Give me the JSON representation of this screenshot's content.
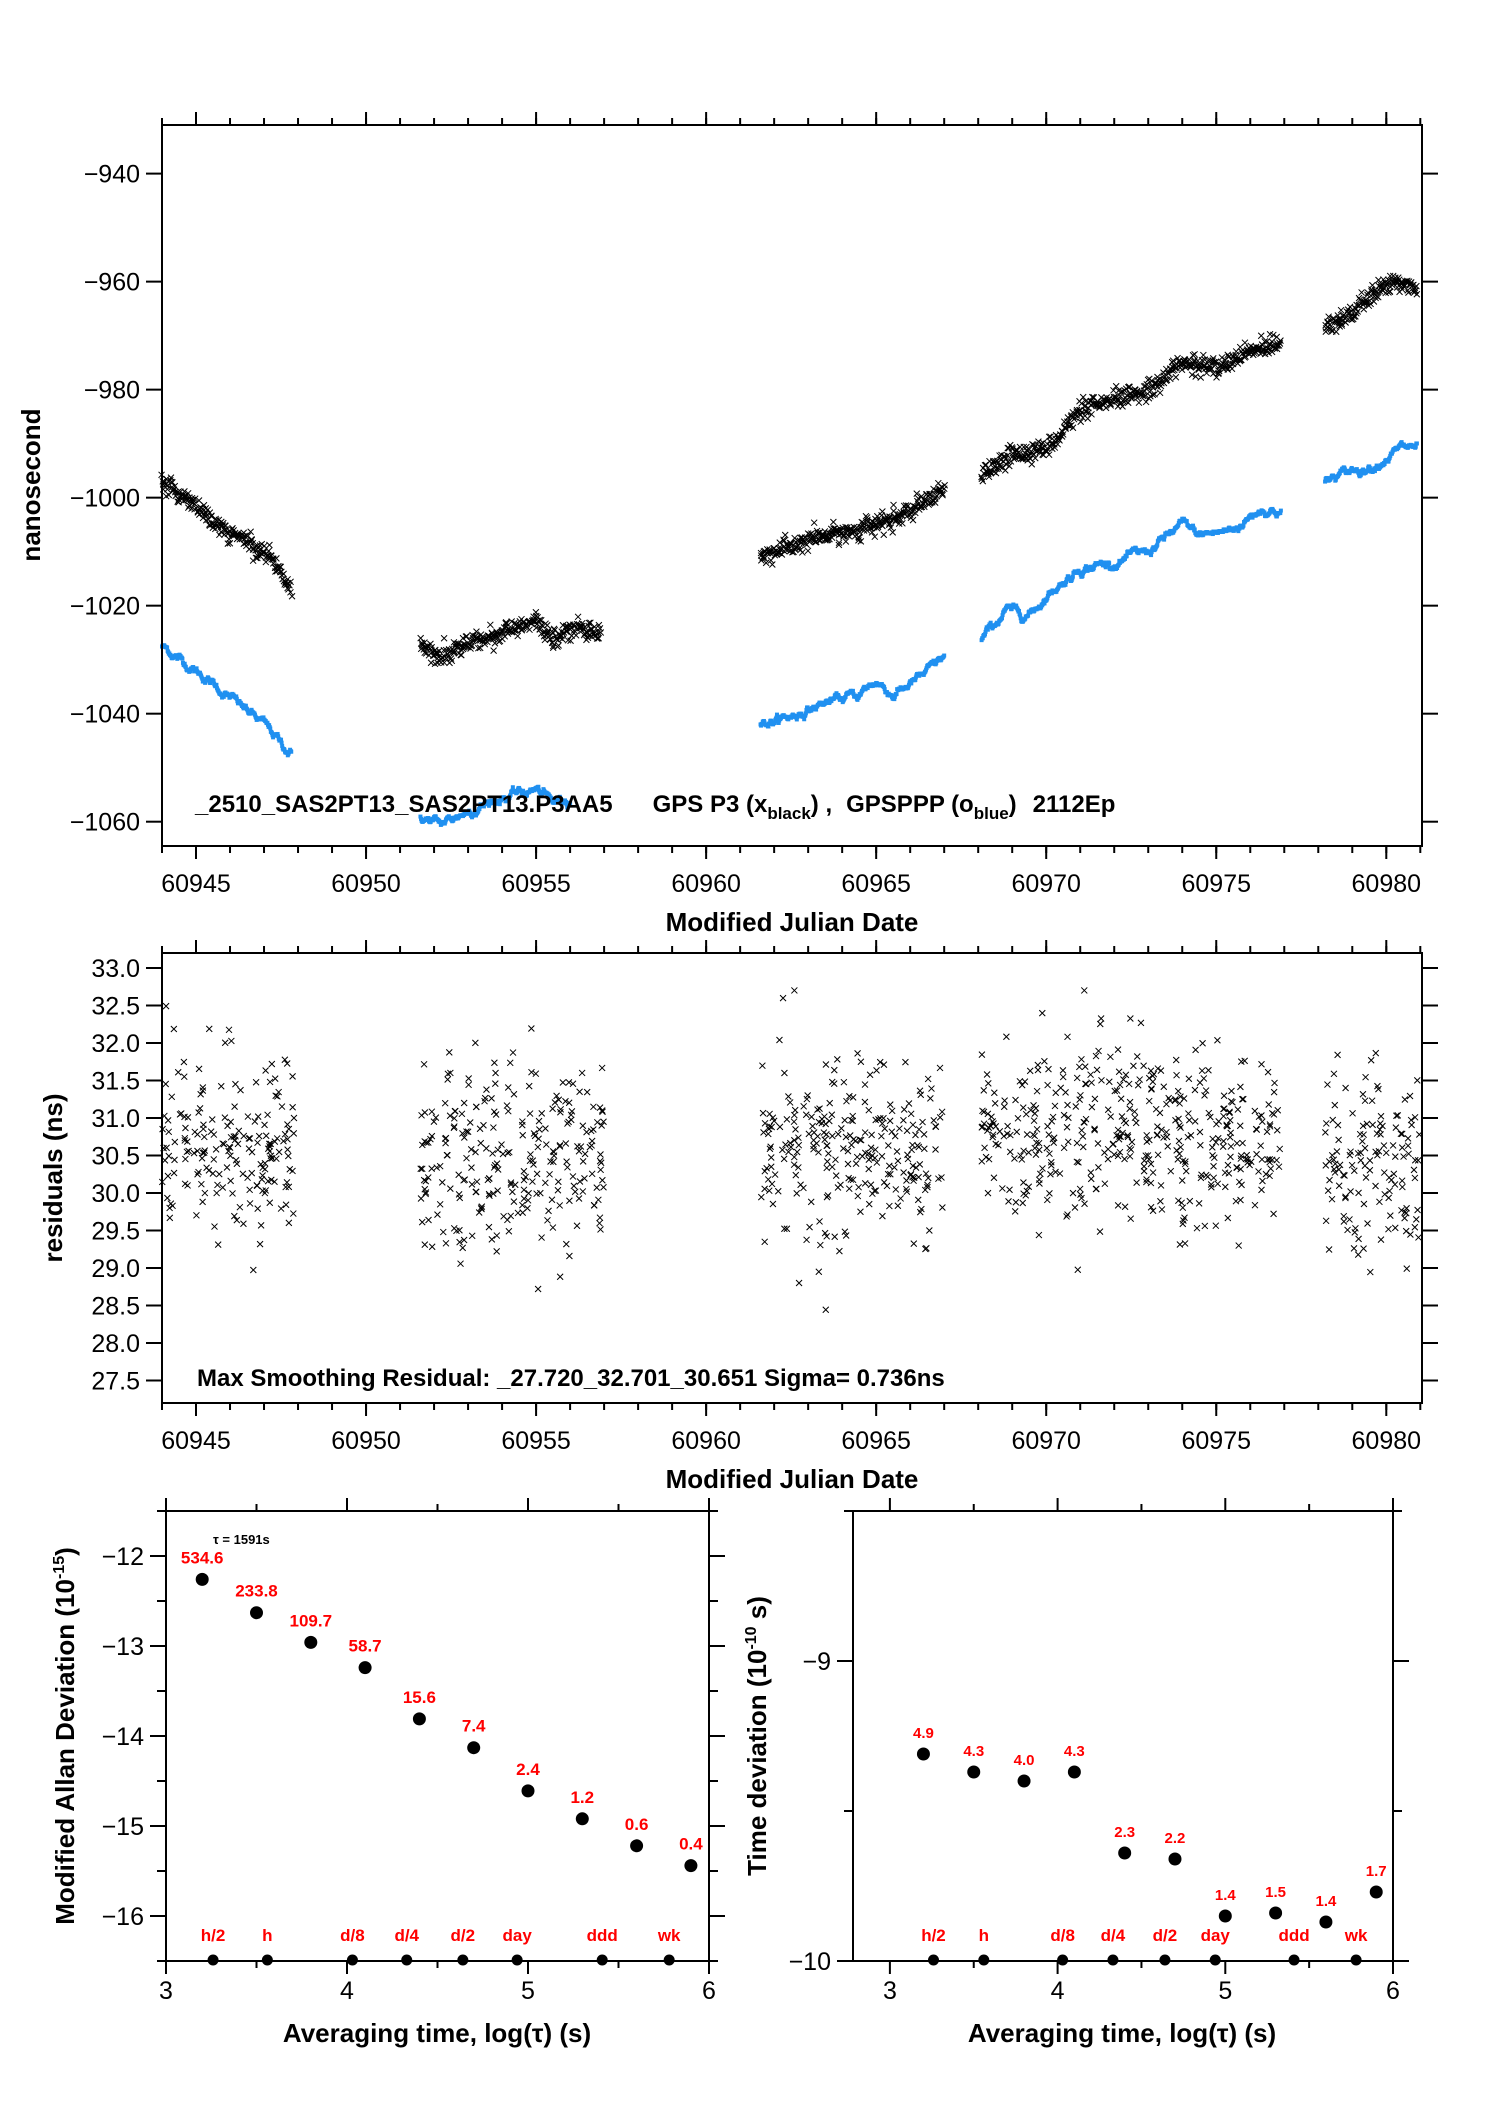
{
  "colors": {
    "black_series": "#000000",
    "blue_series": "#2090f0",
    "label_red": "#ff0000"
  },
  "chart_data": [
    {
      "id": "time_series",
      "type": "scatter",
      "title": "",
      "annotation": {
        "prefix": "_2510_SAS2PT13_SAS2PT13.P3AA5",
        "gps_p3": "GPS P3 (x",
        "gps_p3_sub": "black",
        "comma": ") ,",
        "gpsppp": "GPSPPP (o",
        "gpsppp_sub": "blue",
        "close": ")",
        "suffix": "2112Ep"
      },
      "xlabel": "Modified Julian Date",
      "ylabel": "nanosecond",
      "xlim": [
        60944.0,
        60981.05
      ],
      "ylim": [
        -1064.5,
        -931
      ],
      "xticks": [
        60945,
        60950,
        60955,
        60960,
        60965,
        60970,
        60975,
        60980
      ],
      "xtick_labels": [
        "60945",
        "60950",
        "60955",
        "60960",
        "60965",
        "60970",
        "60975",
        "60980"
      ],
      "yticks": [
        -940,
        -960,
        -980,
        -1000,
        -1020,
        -1040,
        -1060
      ],
      "ytick_labels": [
        "−940",
        "−960",
        "−980",
        "−1000",
        "−1020",
        "−1040",
        "−1060"
      ],
      "series": [
        {
          "name": "GPS P3 (x black)",
          "marker": "x",
          "segments": [
            [
              [
                60944.0,
                -997.5
              ],
              [
                60945.0,
                -1001
              ],
              [
                60945.5,
                -1005
              ],
              [
                60946.5,
                -1008
              ],
              [
                60947.2,
                -1011
              ],
              [
                60947.8,
                -1017
              ]
            ],
            [
              [
                60951.6,
                -1027
              ],
              [
                60952.2,
                -1029.5
              ],
              [
                60953.0,
                -1027
              ],
              [
                60954.0,
                -1025
              ],
              [
                60955.0,
                -1023
              ],
              [
                60955.5,
                -1026
              ],
              [
                60956.2,
                -1024
              ],
              [
                60956.9,
                -1025
              ]
            ],
            [
              [
                60961.6,
                -1011
              ],
              [
                60962.5,
                -1009
              ],
              [
                60963.5,
                -1007
              ],
              [
                60964.5,
                -1006
              ],
              [
                60965.5,
                -1004
              ],
              [
                60966.5,
                -1001
              ],
              [
                60967.0,
                -998.5
              ]
            ],
            [
              [
                60968.1,
                -996
              ],
              [
                60969.0,
                -992
              ],
              [
                60970.0,
                -991
              ],
              [
                60971.0,
                -984
              ],
              [
                60972.0,
                -982
              ],
              [
                60973.0,
                -980
              ],
              [
                60974.0,
                -975
              ],
              [
                60975.0,
                -976
              ],
              [
                60976.0,
                -973
              ],
              [
                60976.9,
                -971
              ]
            ],
            [
              [
                60978.2,
                -968
              ],
              [
                60979.0,
                -966
              ],
              [
                60979.5,
                -963
              ],
              [
                60980.2,
                -960
              ],
              [
                60980.9,
                -961
              ]
            ]
          ]
        },
        {
          "name": "GPSPPP (o blue)",
          "marker": "o",
          "segments": [
            [
              [
                60944.0,
                -1027.5
              ],
              [
                60945.0,
                -1032
              ],
              [
                60946.0,
                -1037
              ],
              [
                60947.0,
                -1042
              ],
              [
                60947.8,
                -1047.5
              ]
            ],
            [
              [
                60951.6,
                -1059
              ],
              [
                60952.2,
                -1060.5
              ],
              [
                60953.0,
                -1058
              ],
              [
                60954.0,
                -1055.5
              ],
              [
                60955.0,
                -1054
              ],
              [
                60955.5,
                -1056.5
              ],
              [
                60956.0,
                -1055.5
              ]
            ],
            [
              [
                60961.6,
                -1042
              ],
              [
                60962.5,
                -1040.5
              ],
              [
                60963.5,
                -1038
              ],
              [
                60964.5,
                -1036.5
              ],
              [
                60965.0,
                -1034
              ],
              [
                60965.5,
                -1036.5
              ],
              [
                60966.5,
                -1032.5
              ],
              [
                60967.0,
                -1029.5
              ]
            ],
            [
              [
                60968.1,
                -1026.5
              ],
              [
                60968.8,
                -1021
              ],
              [
                60969.5,
                -1021.5
              ],
              [
                60970.2,
                -1017
              ],
              [
                60971.0,
                -1013
              ],
              [
                60972.0,
                -1012
              ],
              [
                60973.0,
                -1010
              ],
              [
                60974.0,
                -1005
              ],
              [
                60974.5,
                -1007
              ],
              [
                60975.5,
                -1006
              ],
              [
                60976.3,
                -1002
              ],
              [
                60976.9,
                -1002.5
              ]
            ],
            [
              [
                60978.2,
                -997
              ],
              [
                60979.0,
                -995
              ],
              [
                60979.6,
                -994
              ],
              [
                60980.4,
                -991
              ],
              [
                60980.9,
                -990.5
              ]
            ]
          ]
        }
      ]
    },
    {
      "id": "residuals",
      "type": "scatter",
      "annotation": "Max Smoothing Residual: _27.720_32.701_30.651  Sigma= 0.736ns",
      "xlabel": "Modified Julian Date",
      "ylabel": "residuals (ns)",
      "xlim": [
        60944.0,
        60981.05
      ],
      "ylim": [
        27.2,
        33.2
      ],
      "xticks": [
        60945,
        60950,
        60955,
        60960,
        60965,
        60970,
        60975,
        60980
      ],
      "xtick_labels": [
        "60945",
        "60950",
        "60955",
        "60960",
        "60965",
        "60970",
        "60975",
        "60980"
      ],
      "yticks": [
        27.5,
        28.0,
        28.5,
        29.0,
        29.5,
        30.0,
        30.5,
        31.0,
        31.5,
        32.0,
        32.5,
        33.0
      ],
      "ytick_labels": [
        "27.5",
        "28.0",
        "28.5",
        "29.0",
        "29.5",
        "30.0",
        "30.5",
        "31.0",
        "31.5",
        "32.0",
        "32.5",
        "33.0"
      ],
      "stats": {
        "min": 27.72,
        "max": 32.701,
        "mean": 30.651,
        "sigma_ns": 0.736
      },
      "segments": [
        {
          "x_range": [
            60944.0,
            60947.9
          ],
          "center": 30.65
        },
        {
          "x_range": [
            60951.6,
            60957.0
          ],
          "center": 30.45
        },
        {
          "x_range": [
            60961.6,
            60967.0
          ],
          "center": 30.55
        },
        {
          "x_range": [
            60968.1,
            60976.9
          ],
          "center": 30.8
        },
        {
          "x_range": [
            60978.2,
            60981.0
          ],
          "center": 30.4
        }
      ]
    },
    {
      "id": "mdev",
      "type": "scatter",
      "xlabel": "Averaging time, log(τ) (s)",
      "ylabel_main": "Modified Allan Deviation (10",
      "ylabel_exp": "-15",
      "ylabel_close": ")",
      "tau_note": "τ = 1591s",
      "xlim": [
        3,
        6
      ],
      "ylim": [
        -16.5,
        -11.5
      ],
      "xticks": [
        3,
        4,
        5,
        6
      ],
      "xtick_labels": [
        "3",
        "4",
        "5",
        "6"
      ],
      "yticks": [
        -12,
        -13,
        -14,
        -15,
        -16
      ],
      "ytick_labels": [
        "−12",
        "−13",
        "−14",
        "−15",
        "−16"
      ],
      "points": [
        {
          "x": 3.2,
          "y": -12.26,
          "label": "534.6"
        },
        {
          "x": 3.5,
          "y": -12.63,
          "label": "233.8"
        },
        {
          "x": 3.8,
          "y": -12.96,
          "label": "109.7"
        },
        {
          "x": 4.1,
          "y": -13.24,
          "label": "58.7"
        },
        {
          "x": 4.4,
          "y": -13.81,
          "label": "15.6"
        },
        {
          "x": 4.7,
          "y": -14.13,
          "label": "7.4"
        },
        {
          "x": 5.0,
          "y": -14.61,
          "label": "2.4"
        },
        {
          "x": 5.3,
          "y": -14.92,
          "label": "1.2"
        },
        {
          "x": 5.6,
          "y": -15.22,
          "label": "0.6"
        },
        {
          "x": 5.9,
          "y": -15.44,
          "label": "0.4"
        }
      ],
      "markers": [
        {
          "x": 3.26,
          "label": "h/2"
        },
        {
          "x": 3.56,
          "label": "h"
        },
        {
          "x": 4.03,
          "label": "d/8"
        },
        {
          "x": 4.33,
          "label": "d/4"
        },
        {
          "x": 4.64,
          "label": "d/2"
        },
        {
          "x": 4.94,
          "label": "day"
        },
        {
          "x": 5.41,
          "label": "ddd"
        },
        {
          "x": 5.78,
          "label": "wk"
        }
      ]
    },
    {
      "id": "tdev",
      "type": "scatter",
      "xlabel": "Averaging time, log(τ) (s)",
      "ylabel_main": "Time deviation (10",
      "ylabel_exp": "-10",
      "ylabel_close": " s)",
      "xlim": [
        2.78,
        6
      ],
      "ylim": [
        -10,
        -8.5
      ],
      "xticks": [
        3,
        4,
        5,
        6
      ],
      "xtick_labels": [
        "3",
        "4",
        "5",
        "6"
      ],
      "yticks": [
        -9,
        -10
      ],
      "ytick_labels": [
        "−9",
        "−10"
      ],
      "points": [
        {
          "x": 3.2,
          "y": -9.31,
          "label": "4.9"
        },
        {
          "x": 3.5,
          "y": -9.37,
          "label": "4.3"
        },
        {
          "x": 3.8,
          "y": -9.4,
          "label": "4.0"
        },
        {
          "x": 4.1,
          "y": -9.37,
          "label": "4.3"
        },
        {
          "x": 4.4,
          "y": -9.64,
          "label": "2.3"
        },
        {
          "x": 4.7,
          "y": -9.66,
          "label": "2.2"
        },
        {
          "x": 5.0,
          "y": -9.85,
          "label": "1.4"
        },
        {
          "x": 5.3,
          "y": -9.84,
          "label": "1.5"
        },
        {
          "x": 5.6,
          "y": -9.87,
          "label": "1.4"
        },
        {
          "x": 5.9,
          "y": -9.77,
          "label": "1.7"
        }
      ],
      "markers": [
        {
          "x": 3.26,
          "label": "h/2"
        },
        {
          "x": 3.56,
          "label": "h"
        },
        {
          "x": 4.03,
          "label": "d/8"
        },
        {
          "x": 4.33,
          "label": "d/4"
        },
        {
          "x": 4.64,
          "label": "d/2"
        },
        {
          "x": 4.94,
          "label": "day"
        },
        {
          "x": 5.41,
          "label": "ddd"
        },
        {
          "x": 5.78,
          "label": "wk"
        }
      ]
    }
  ]
}
